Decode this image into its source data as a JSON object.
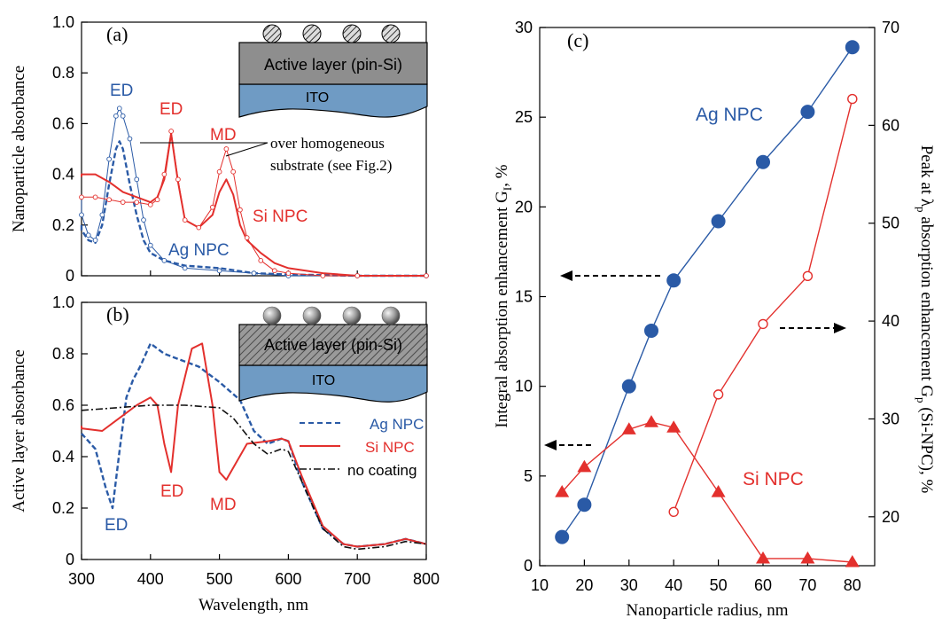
{
  "colors": {
    "ag": "#2a5aa6",
    "si": "#e3302d",
    "nocoat": "#111111",
    "active_gray": "#8e8e8e",
    "ito": "#6f9bc4"
  },
  "panel_a": {
    "label": "(a)",
    "ylabel": "Nanoparticle absorbance",
    "inset": {
      "active": "Active layer (pin-Si)",
      "ito": "ITO"
    },
    "annotations": {
      "ed_ag": "ED",
      "ed_si": "ED",
      "md_si": "MD",
      "si_npc": "Si NPC",
      "ag_npc": "Ag NPC",
      "note_line1": "over homogeneous",
      "note_line2": "substrate (see Fig.2)"
    }
  },
  "panel_b": {
    "label": "(b)",
    "ylabel": "Active layer absorbance",
    "xlabel": "Wavelength, nm",
    "inset": {
      "active": "Active layer (pin-Si)",
      "ito": "ITO"
    },
    "annotations": {
      "ed_ag": "ED",
      "ed_si": "ED",
      "md_si": "MD"
    },
    "legend": [
      "Ag NPC",
      "Si NPC",
      "no coating"
    ]
  },
  "panel_c": {
    "label": "(c)",
    "xlabel": "Nanoparticle radius, nm",
    "ylabel_left": "Integral absorption enhancement G",
    "ylabel_left_sub": "I",
    "ylabel_left_unit": ", %",
    "ylabel_right_pre": "Peak at λ",
    "ylabel_right_sub": "p",
    "ylabel_right_mid": " absorption enhancement G",
    "ylabel_right_sub2": "p",
    "ylabel_right_post": " (Si-NPC), %",
    "annotations": {
      "ag": "Ag NPC",
      "si": "Si NPC"
    }
  },
  "chart_data": [
    {
      "type": "line",
      "panel": "a",
      "xlim": [
        300,
        800
      ],
      "ylim": [
        0,
        1.0
      ],
      "x_ticks": [
        300,
        400,
        500,
        600,
        700,
        800
      ],
      "y_ticks": [
        "0",
        "0.2",
        "0.4",
        "0.6",
        "0.8",
        "1.0"
      ],
      "series": [
        {
          "name": "Ag NPC",
          "style": "dashed",
          "x": [
            290,
            300,
            310,
            320,
            330,
            340,
            350,
            355,
            360,
            370,
            380,
            390,
            400,
            420,
            450,
            500,
            550,
            600,
            700,
            800
          ],
          "y": [
            0.2,
            0.18,
            0.14,
            0.13,
            0.2,
            0.36,
            0.5,
            0.53,
            0.5,
            0.36,
            0.24,
            0.14,
            0.09,
            0.06,
            0.04,
            0.03,
            0.01,
            0.005,
            0.0,
            0.0
          ]
        },
        {
          "name": "Ag NPC over homogeneous substrate",
          "style": "thin-open-marker",
          "x": [
            290,
            300,
            310,
            320,
            330,
            340,
            350,
            355,
            360,
            370,
            380,
            390,
            400,
            420,
            450,
            500,
            550,
            600,
            700,
            800
          ],
          "y": [
            0.3,
            0.24,
            0.16,
            0.14,
            0.24,
            0.46,
            0.63,
            0.66,
            0.63,
            0.54,
            0.38,
            0.22,
            0.12,
            0.06,
            0.03,
            0.02,
            0.01,
            0.0,
            0.0,
            0.0
          ]
        },
        {
          "name": "Si NPC",
          "style": "solid",
          "x": [
            290,
            300,
            320,
            340,
            360,
            380,
            400,
            410,
            420,
            430,
            440,
            450,
            470,
            490,
            500,
            510,
            520,
            530,
            540,
            560,
            580,
            600,
            650,
            700,
            800
          ],
          "y": [
            0.39,
            0.4,
            0.4,
            0.37,
            0.33,
            0.31,
            0.29,
            0.31,
            0.38,
            0.56,
            0.37,
            0.22,
            0.19,
            0.24,
            0.33,
            0.38,
            0.32,
            0.2,
            0.14,
            0.09,
            0.05,
            0.03,
            0.01,
            0.0,
            0.0
          ]
        },
        {
          "name": "Si NPC over homogeneous substrate",
          "style": "thin-open-marker",
          "x": [
            290,
            300,
            320,
            340,
            360,
            380,
            400,
            410,
            420,
            430,
            440,
            450,
            470,
            490,
            500,
            510,
            520,
            530,
            540,
            560,
            580,
            600,
            650,
            700,
            800
          ],
          "y": [
            0.32,
            0.31,
            0.31,
            0.3,
            0.29,
            0.29,
            0.28,
            0.3,
            0.4,
            0.57,
            0.38,
            0.22,
            0.19,
            0.27,
            0.41,
            0.5,
            0.41,
            0.26,
            0.15,
            0.06,
            0.02,
            0.01,
            0.0,
            0.0,
            0.0
          ]
        }
      ]
    },
    {
      "type": "line",
      "panel": "b",
      "xlim": [
        300,
        800
      ],
      "ylim": [
        0,
        1.0
      ],
      "x_ticks": [
        300,
        400,
        500,
        600,
        700,
        800
      ],
      "y_ticks": [
        "0",
        "0.2",
        "0.4",
        "0.6",
        "0.8",
        "1.0"
      ],
      "series": [
        {
          "name": "Ag NPC",
          "style": "dashed",
          "x": [
            290,
            300,
            320,
            335,
            345,
            355,
            365,
            375,
            385,
            400,
            420,
            440,
            470,
            500,
            530,
            550,
            570,
            590,
            600,
            620,
            650,
            680,
            700,
            740,
            770,
            800
          ],
          "y": [
            0.49,
            0.49,
            0.43,
            0.28,
            0.2,
            0.42,
            0.63,
            0.7,
            0.75,
            0.84,
            0.8,
            0.78,
            0.75,
            0.69,
            0.62,
            0.5,
            0.45,
            0.47,
            0.46,
            0.3,
            0.12,
            0.06,
            0.05,
            0.06,
            0.08,
            0.06
          ]
        },
        {
          "name": "Si NPC",
          "style": "solid",
          "x": [
            290,
            300,
            330,
            360,
            380,
            400,
            410,
            420,
            430,
            440,
            460,
            475,
            490,
            500,
            510,
            540,
            570,
            590,
            600,
            620,
            650,
            680,
            700,
            740,
            770,
            800
          ],
          "y": [
            0.52,
            0.51,
            0.5,
            0.56,
            0.6,
            0.63,
            0.6,
            0.45,
            0.34,
            0.6,
            0.82,
            0.84,
            0.6,
            0.34,
            0.31,
            0.45,
            0.46,
            0.47,
            0.46,
            0.32,
            0.13,
            0.06,
            0.05,
            0.06,
            0.08,
            0.06
          ]
        },
        {
          "name": "no coating",
          "style": "dashdot",
          "x": [
            290,
            300,
            350,
            400,
            450,
            500,
            520,
            550,
            570,
            590,
            600,
            620,
            650,
            680,
            700,
            740,
            770,
            800
          ],
          "y": [
            0.58,
            0.58,
            0.59,
            0.6,
            0.6,
            0.59,
            0.55,
            0.45,
            0.41,
            0.43,
            0.42,
            0.3,
            0.12,
            0.05,
            0.04,
            0.05,
            0.07,
            0.06
          ]
        }
      ]
    },
    {
      "type": "scatter",
      "panel": "c",
      "xlabel": "Nanoparticle radius, nm",
      "xlim": [
        10,
        85
      ],
      "ylim_left": [
        0,
        30
      ],
      "ylim_right": [
        15,
        70
      ],
      "x_ticks": [
        10,
        20,
        30,
        40,
        50,
        60,
        70,
        80
      ],
      "y_ticks_left": [
        0,
        5,
        10,
        15,
        20,
        25,
        30
      ],
      "y_ticks_right": [
        20,
        30,
        40,
        50,
        60,
        70
      ],
      "series": [
        {
          "name": "Ag NPC",
          "axis": "left",
          "marker": "filled-circle",
          "x": [
            15,
            20,
            30,
            35,
            40,
            50,
            60,
            70,
            80
          ],
          "y": [
            1.6,
            3.4,
            10.0,
            13.1,
            15.9,
            19.2,
            22.5,
            25.3,
            28.9
          ]
        },
        {
          "name": "Si NPC",
          "axis": "left",
          "marker": "filled-triangle",
          "x": [
            15,
            20,
            30,
            35,
            40,
            50,
            60,
            70,
            80
          ],
          "y": [
            4.1,
            5.5,
            7.6,
            8.0,
            7.7,
            4.1,
            0.4,
            0.4,
            0.2
          ]
        },
        {
          "name": "Si NPC peak",
          "axis": "right",
          "marker": "open-circle",
          "x": [
            40,
            50,
            60,
            70,
            80
          ],
          "y": [
            20.5,
            32.5,
            39.7,
            44.6,
            62.7
          ]
        }
      ]
    }
  ]
}
